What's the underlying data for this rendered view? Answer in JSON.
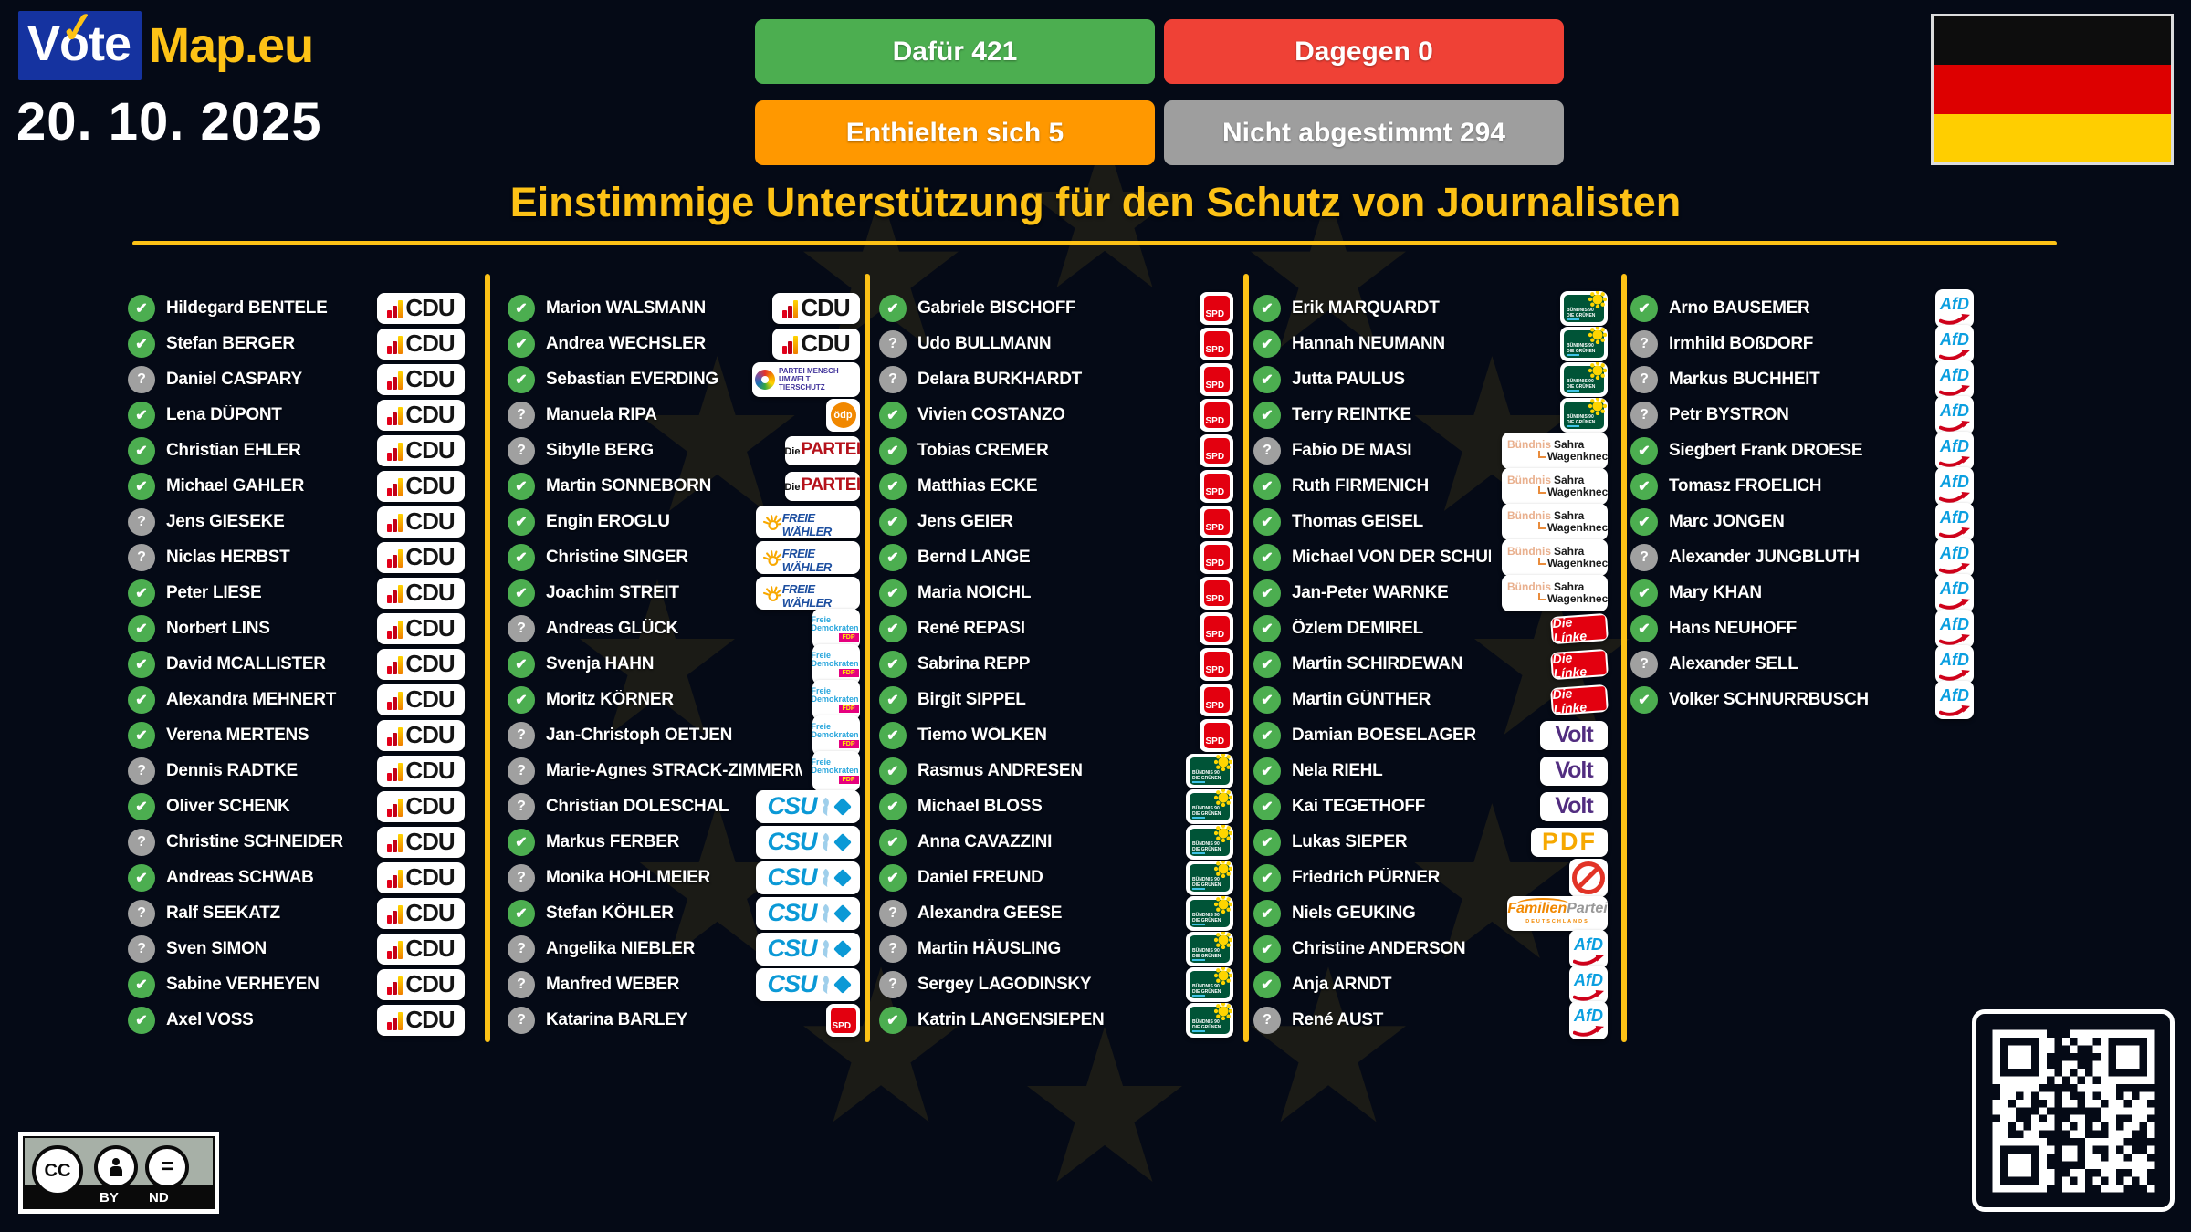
{
  "brand": {
    "vote": "Vote",
    "map": "Map.eu",
    "check": "✓"
  },
  "date": "20. 10. 2025",
  "results": [
    {
      "label": "Dafür 421",
      "color": "#4cae50"
    },
    {
      "label": "Dagegen 0",
      "color": "#ef4136"
    },
    {
      "label": "Enthielten sich 5",
      "color": "#ff9800"
    },
    {
      "label": "Nicht abgestimmt 294",
      "color": "#9e9e9e"
    }
  ],
  "title": "Einstimmige Unterstützung für den Schutz von Journalisten",
  "accent_color": "#fdc216",
  "icons": {
    "yes": "✔",
    "unknown": "?"
  },
  "parties": {
    "cdu": {
      "text": "CDU"
    },
    "csu": {
      "text": "CSU"
    },
    "spd": {
      "text": "SPD"
    },
    "gruene": {
      "line1": "BÜNDNIS 90",
      "line2": "DIE GRÜNEN"
    },
    "afd": {
      "text": "AfD"
    },
    "fdp": {
      "line1": "Freie",
      "line2": "Demokraten",
      "text": "FDP"
    },
    "linke": {
      "text": "Die Línke"
    },
    "bsw": {
      "line1": "Bündnis",
      "line2": "Sahra",
      "line3": "Wagenknecht"
    },
    "volt": {
      "text": "Volt"
    },
    "pdf": {
      "text": "PDF"
    },
    "fw": {
      "text": "FREIE WÄHLER"
    },
    "partei": {
      "line1": "Die",
      "line2": "PARTEI"
    },
    "tier": {
      "line1": "PARTEI MENSCH",
      "line2": "UMWELT TIERSCHUTZ"
    },
    "oedp": {
      "text": "ödp"
    },
    "familie": {
      "line1": "Familien",
      "line2": "Partei",
      "line3": "DEUTSCHLANDS"
    },
    "indep": {}
  },
  "columns": [
    [
      [
        "Hildegard BENTELE",
        "y",
        "cdu"
      ],
      [
        "Stefan BERGER",
        "y",
        "cdu"
      ],
      [
        "Daniel CASPARY",
        "u",
        "cdu"
      ],
      [
        "Lena DÜPONT",
        "y",
        "cdu"
      ],
      [
        "Christian EHLER",
        "y",
        "cdu"
      ],
      [
        "Michael GAHLER",
        "y",
        "cdu"
      ],
      [
        "Jens GIESEKE",
        "u",
        "cdu"
      ],
      [
        "Niclas HERBST",
        "u",
        "cdu"
      ],
      [
        "Peter LIESE",
        "y",
        "cdu"
      ],
      [
        "Norbert LINS",
        "y",
        "cdu"
      ],
      [
        "David MCALLISTER",
        "y",
        "cdu"
      ],
      [
        "Alexandra MEHNERT",
        "y",
        "cdu"
      ],
      [
        "Verena MERTENS",
        "y",
        "cdu"
      ],
      [
        "Dennis RADTKE",
        "u",
        "cdu"
      ],
      [
        "Oliver SCHENK",
        "y",
        "cdu"
      ],
      [
        "Christine SCHNEIDER",
        "u",
        "cdu"
      ],
      [
        "Andreas SCHWAB",
        "y",
        "cdu"
      ],
      [
        "Ralf SEEKATZ",
        "u",
        "cdu"
      ],
      [
        "Sven SIMON",
        "u",
        "cdu"
      ],
      [
        "Sabine VERHEYEN",
        "y",
        "cdu"
      ],
      [
        "Axel VOSS",
        "y",
        "cdu"
      ]
    ],
    [
      [
        "Marion WALSMANN",
        "y",
        "cdu"
      ],
      [
        "Andrea WECHSLER",
        "y",
        "cdu"
      ],
      [
        "Sebastian EVERDING",
        "y",
        "tier"
      ],
      [
        "Manuela RIPA",
        "u",
        "oedp"
      ],
      [
        "Sibylle BERG",
        "u",
        "partei"
      ],
      [
        "Martin SONNEBORN",
        "y",
        "partei"
      ],
      [
        "Engin EROGLU",
        "y",
        "fw"
      ],
      [
        "Christine SINGER",
        "y",
        "fw"
      ],
      [
        "Joachim STREIT",
        "y",
        "fw"
      ],
      [
        "Andreas GLÜCK",
        "u",
        "fdp"
      ],
      [
        "Svenja HAHN",
        "y",
        "fdp"
      ],
      [
        "Moritz KÖRNER",
        "y",
        "fdp"
      ],
      [
        "Jan-Christoph OETJEN",
        "u",
        "fdp"
      ],
      [
        "Marie-Agnes STRACK-ZIMMERMANN",
        "u",
        "fdp"
      ],
      [
        "Christian DOLESCHAL",
        "u",
        "csu"
      ],
      [
        "Markus FERBER",
        "y",
        "csu"
      ],
      [
        "Monika HOHLMEIER",
        "u",
        "csu"
      ],
      [
        "Stefan KÖHLER",
        "y",
        "csu"
      ],
      [
        "Angelika NIEBLER",
        "u",
        "csu"
      ],
      [
        "Manfred WEBER",
        "u",
        "csu"
      ],
      [
        "Katarina BARLEY",
        "u",
        "spd"
      ]
    ],
    [
      [
        "Gabriele BISCHOFF",
        "y",
        "spd"
      ],
      [
        "Udo BULLMANN",
        "u",
        "spd"
      ],
      [
        "Delara BURKHARDT",
        "u",
        "spd"
      ],
      [
        "Vivien COSTANZO",
        "y",
        "spd"
      ],
      [
        "Tobias CREMER",
        "y",
        "spd"
      ],
      [
        "Matthias ECKE",
        "y",
        "spd"
      ],
      [
        "Jens GEIER",
        "y",
        "spd"
      ],
      [
        "Bernd LANGE",
        "y",
        "spd"
      ],
      [
        "Maria NOICHL",
        "y",
        "spd"
      ],
      [
        "René REPASI",
        "y",
        "spd"
      ],
      [
        "Sabrina REPP",
        "y",
        "spd"
      ],
      [
        "Birgit SIPPEL",
        "y",
        "spd"
      ],
      [
        "Tiemo WÖLKEN",
        "y",
        "spd"
      ],
      [
        "Rasmus ANDRESEN",
        "y",
        "gruene"
      ],
      [
        "Michael BLOSS",
        "y",
        "gruene"
      ],
      [
        "Anna CAVAZZINI",
        "y",
        "gruene"
      ],
      [
        "Daniel FREUND",
        "y",
        "gruene"
      ],
      [
        "Alexandra GEESE",
        "u",
        "gruene"
      ],
      [
        "Martin HÄUSLING",
        "u",
        "gruene"
      ],
      [
        "Sergey LAGODINSKY",
        "u",
        "gruene"
      ],
      [
        "Katrin LANGENSIEPEN",
        "y",
        "gruene"
      ]
    ],
    [
      [
        "Erik MARQUARDT",
        "y",
        "gruene"
      ],
      [
        "Hannah NEUMANN",
        "y",
        "gruene"
      ],
      [
        "Jutta PAULUS",
        "y",
        "gruene"
      ],
      [
        "Terry REINTKE",
        "y",
        "gruene"
      ],
      [
        "Fabio DE MASI",
        "u",
        "bsw"
      ],
      [
        "Ruth FIRMENICH",
        "y",
        "bsw"
      ],
      [
        "Thomas GEISEL",
        "y",
        "bsw"
      ],
      [
        "Michael VON DER SCHULENBURG",
        "y",
        "bsw"
      ],
      [
        "Jan-Peter WARNKE",
        "y",
        "bsw"
      ],
      [
        "Özlem DEMIREL",
        "y",
        "linke"
      ],
      [
        "Martin SCHIRDEWAN",
        "y",
        "linke"
      ],
      [
        "Martin GÜNTHER",
        "y",
        "linke"
      ],
      [
        "Damian BOESELAGER",
        "y",
        "volt"
      ],
      [
        "Nela RIEHL",
        "y",
        "volt"
      ],
      [
        "Kai TEGETHOFF",
        "y",
        "volt"
      ],
      [
        "Lukas SIEPER",
        "y",
        "pdf"
      ],
      [
        "Friedrich PÜRNER",
        "y",
        "indep"
      ],
      [
        "Niels GEUKING",
        "y",
        "familie"
      ],
      [
        "Christine ANDERSON",
        "y",
        "afd"
      ],
      [
        "Anja ARNDT",
        "y",
        "afd"
      ],
      [
        "René AUST",
        "u",
        "afd"
      ]
    ],
    [
      [
        "Arno BAUSEMER",
        "y",
        "afd"
      ],
      [
        "Irmhild BOßDORF",
        "u",
        "afd"
      ],
      [
        "Markus BUCHHEIT",
        "u",
        "afd"
      ],
      [
        "Petr BYSTRON",
        "u",
        "afd"
      ],
      [
        "Siegbert Frank DROESE",
        "y",
        "afd"
      ],
      [
        "Tomasz FROELICH",
        "y",
        "afd"
      ],
      [
        "Marc JONGEN",
        "y",
        "afd"
      ],
      [
        "Alexander JUNGBLUTH",
        "u",
        "afd"
      ],
      [
        "Mary KHAN",
        "y",
        "afd"
      ],
      [
        "Hans NEUHOFF",
        "y",
        "afd"
      ],
      [
        "Alexander SELL",
        "u",
        "afd"
      ],
      [
        "Volker SCHNURRBUSCH",
        "y",
        "afd"
      ]
    ]
  ],
  "license": {
    "cc": "CC",
    "by": "BY",
    "nd": "ND",
    "eq": "="
  }
}
